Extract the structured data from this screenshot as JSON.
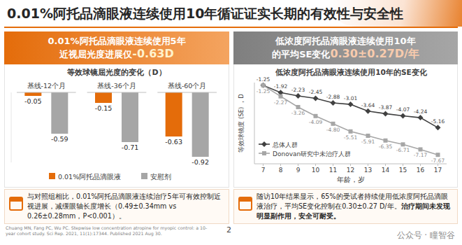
{
  "page": {
    "title": "0.01%阿托品滴眼液连续使用10年循证证实长期的有效性与安全性",
    "panels": [
      {
        "header_line1": "0.01%阿托品滴眼液连续使用5年",
        "header_line2": "近视屈光度进展仅",
        "header_highlight": "-0.63D",
        "note": "与对照组相比，0.01%阿托品滴眼液连续治疗5年可有效控制近视进展，减缓眼轴长度增长（0.49±0.34mm vs 0.26±0.28mm，P<0.001）。"
      },
      {
        "header_line1": "低浓度阿托品滴眼液连续使用10年",
        "header_line2": "的平均SE变化",
        "header_highlight": "0.30±0.27D/年",
        "note": "随访10年结果显示，65%的受试者持续使用低浓度阿托品滴眼液治疗，平均SE变化控制在0.30±0.27 D/年。",
        "note_emphasis": "治疗期间未发现明显副作用，安全可耐受。"
      }
    ],
    "reference": "Chuang MN, Fang PC, Wu PC. Stepwise low concentration atropine for myopic control: a 10-year cohort study. Sci Rep. 2021, 11(1):17344. Published 2021 Aug 30.",
    "page_number": "2",
    "watermark": "公众号 · 瞳智谷"
  },
  "chart_data": [
    {
      "type": "bar",
      "title": "等效球镜屈光度的变化（D）",
      "categories": [
        "基线-12个月",
        "基线-36个月",
        "基线-60个月"
      ],
      "series": [
        {
          "name": "0.01%阿托品滴眼液",
          "color": "#e46c0a",
          "values": [
            -0.05,
            -0.15,
            -0.63
          ]
        },
        {
          "name": "安慰剂",
          "color": "#a6a6a6",
          "values": [
            -0.59,
            -0.71,
            -0.92
          ]
        }
      ],
      "ylim": [
        -1,
        0
      ],
      "data_labels": true,
      "tick_labels": "x",
      "legend": "bottom"
    },
    {
      "type": "line",
      "title": "低浓度阿托品滴眼液连续使用10年的SE变化",
      "x": [
        7,
        8,
        9,
        10,
        11,
        12,
        13,
        14,
        15,
        16,
        17
      ],
      "xlim": [
        6.5,
        17.5
      ],
      "xticks": [
        7,
        8,
        9,
        10,
        11,
        12,
        13,
        14,
        15,
        16,
        17
      ],
      "ylim": [
        -8.5,
        -1
      ],
      "x_label": "年龄，岁",
      "y_label": "等效球镜度 (SE) ，D",
      "series": [
        {
          "name": "总体人群",
          "color": "#404040",
          "marker": "diamond",
          "values": [
            -1.25,
            -1.92,
            -2.23,
            -2.45,
            -2.88,
            -3.01,
            -3.64,
            -3.87,
            -4.07,
            -4.24,
            -5.16
          ]
        },
        {
          "name": "Donovan研究中未治疗人群",
          "color": "#a6a6a6",
          "marker": "square",
          "values": [
            -1.25,
            -2.27,
            -3.26,
            -4.09,
            -4.8,
            -5.51,
            -5.91,
            -6.35,
            -6.71,
            -7.17,
            -7.67
          ]
        }
      ],
      "data_labels": true,
      "tick_labels": "x",
      "legend": "lower left"
    }
  ]
}
